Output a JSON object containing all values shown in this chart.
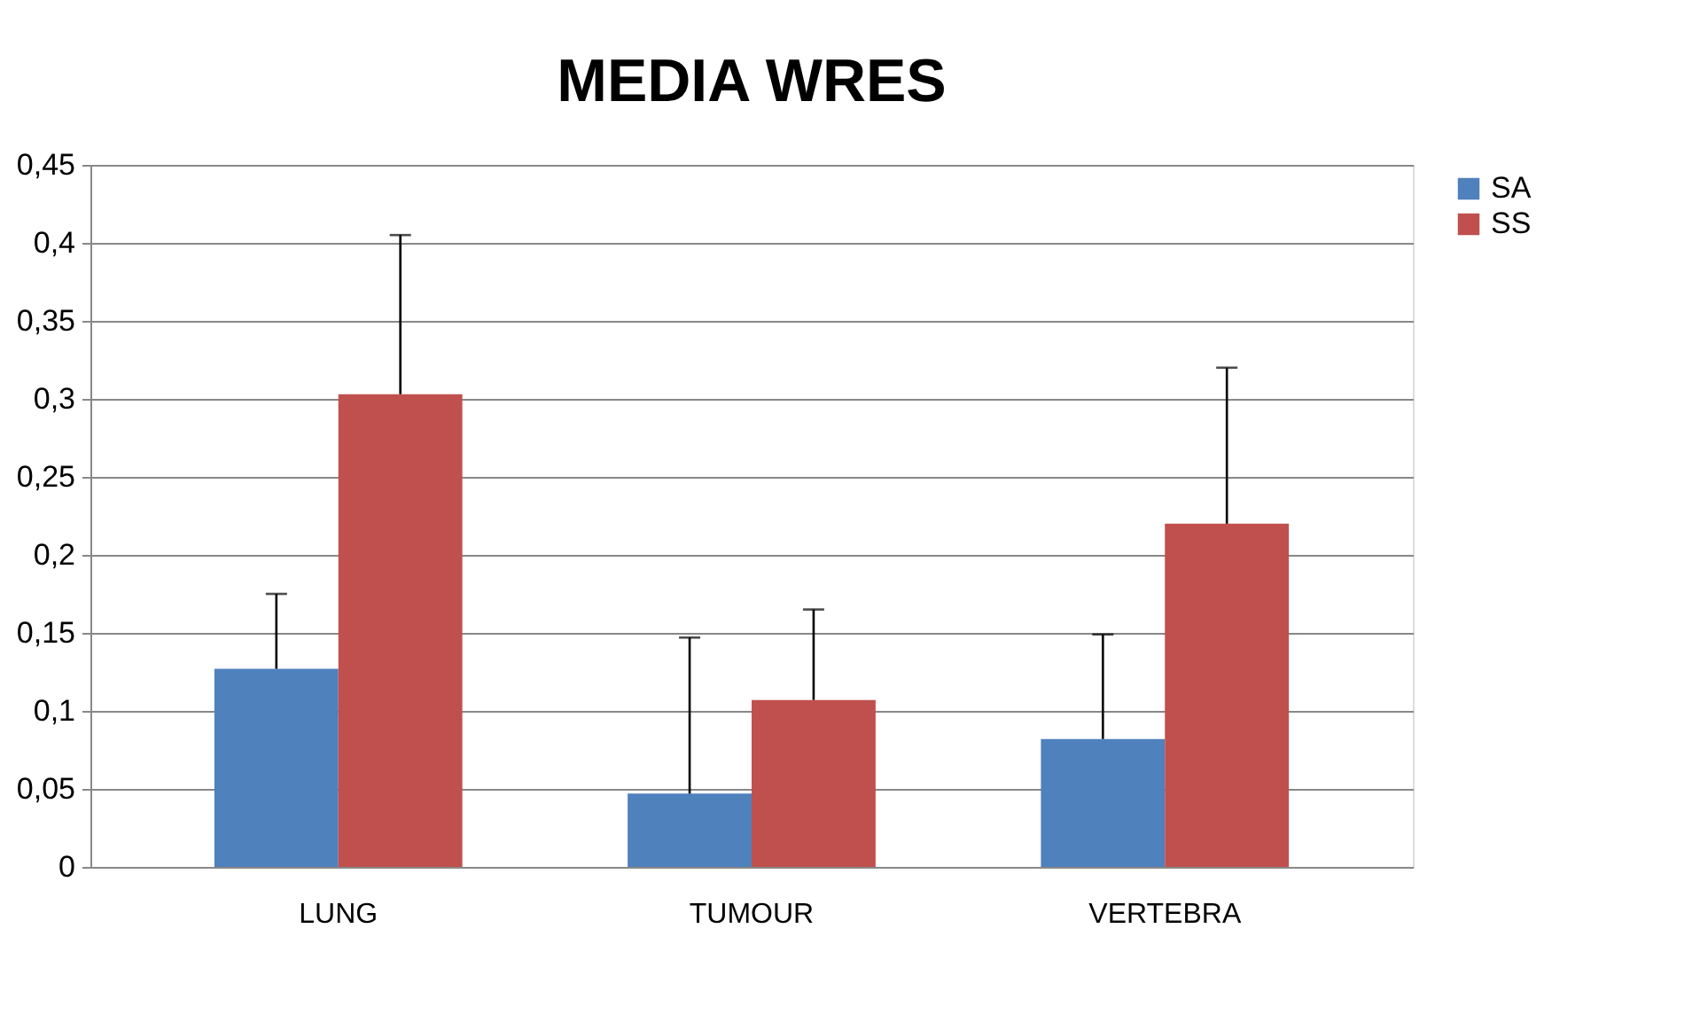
{
  "chart_data": {
    "type": "bar",
    "title": "MEDIA WRES",
    "categories": [
      "LUNG",
      "TUMOUR",
      "VERTEBRA"
    ],
    "series": [
      {
        "name": "SA",
        "color": "#4f81bd",
        "values": [
          0.127,
          0.047,
          0.082
        ],
        "errors": [
          [
            0.127,
            0.175
          ],
          [
            0.047,
            0.147
          ],
          [
            0.082,
            0.149
          ]
        ]
      },
      {
        "name": "SS",
        "color": "#c0504d",
        "values": [
          0.303,
          0.107,
          0.22
        ],
        "errors": [
          [
            0.303,
            0.405
          ],
          [
            0.107,
            0.165
          ],
          [
            0.22,
            0.32
          ]
        ]
      }
    ],
    "ylim": [
      0,
      0.45
    ],
    "yticks": [
      0,
      {
        "value": 0.05,
        "label": "0,05"
      },
      {
        "value": 0.1,
        "label": "0,1"
      },
      {
        "value": 0.15,
        "label": "0,15"
      },
      {
        "value": 0.2,
        "label": "0,2"
      },
      {
        "value": 0.25,
        "label": "0,25"
      },
      {
        "value": 0.3,
        "label": "0,3"
      },
      {
        "value": 0.35,
        "label": "0,35"
      },
      {
        "value": 0.4,
        "label": "0,4"
      },
      {
        "value": 0.45,
        "label": "0,45"
      }
    ],
    "grid": "y",
    "legend": "right"
  }
}
